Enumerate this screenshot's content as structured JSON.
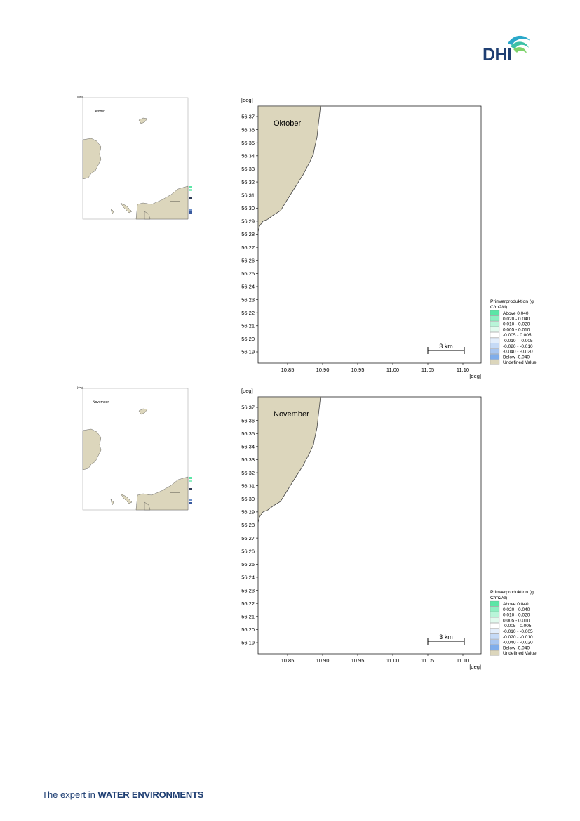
{
  "header": {
    "logo_text": "DHI"
  },
  "footer": {
    "text_light": "The expert in ",
    "text_bold": "WATER ENVIRONMENTS"
  },
  "colors": {
    "land": "#dcd6bc",
    "land_stroke": "#444444",
    "axis": "#000000",
    "legend_classes": [
      "#5be6a6",
      "#8eefc2",
      "#b9f5d9",
      "#e2faee",
      "#ffffff",
      "#e3eefb",
      "#c5daf6",
      "#a8c6f0",
      "#7fadeb",
      "#dcd6bc"
    ]
  },
  "legend": {
    "title_line1": "Primærproduktion (g",
    "title_line2": "C/m2/d)",
    "items": [
      {
        "label": "Above    0.040",
        "color": "#5be6a6"
      },
      {
        "label": "0.020 -  0.040",
        "color": "#8eefc2"
      },
      {
        "label": "0.010 -  0.020",
        "color": "#b9f5d9"
      },
      {
        "label": "0.005 -  0.010",
        "color": "#e2faee"
      },
      {
        "label": "-0.005 -  0.005",
        "color": "#ffffff"
      },
      {
        "label": "-0.010 - -0.005",
        "color": "#e3eefb"
      },
      {
        "label": "-0.020 - -0.010",
        "color": "#c5daf6"
      },
      {
        "label": "-0.040 - -0.020",
        "color": "#a8c6f0"
      },
      {
        "label": "Below    -0.040",
        "color": "#7fadeb"
      },
      {
        "label": "Undefined Value",
        "color": "#dcd6bc"
      }
    ]
  },
  "axes": {
    "unit": "[deg]",
    "y_ticks": [
      "56.37",
      "56.36",
      "56.35",
      "56.34",
      "56.33",
      "56.32",
      "56.31",
      "56.30",
      "56.29",
      "56.28",
      "56.27",
      "56.26",
      "56.25",
      "56.24",
      "56.23",
      "56.22",
      "56.21",
      "56.20",
      "56.19"
    ],
    "x_ticks": [
      "10.85",
      "10.90",
      "10.95",
      "11.00",
      "11.05",
      "11.10"
    ],
    "scale_bar": "3 km"
  },
  "panels": [
    {
      "month": "Oktober"
    },
    {
      "month": "November"
    }
  ]
}
